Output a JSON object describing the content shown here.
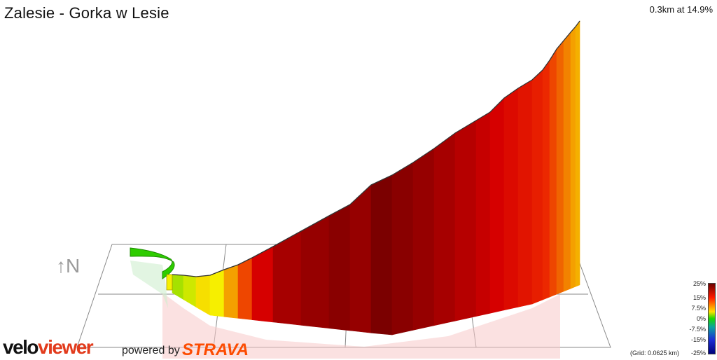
{
  "header": {
    "title": "Zalesie - Gorka w Lesie",
    "summary": "0.3km at 14.9%"
  },
  "compass": {
    "label": "↑N"
  },
  "legend": {
    "ticks": [
      "25%",
      "15%",
      "7.5%",
      "0%",
      "-7.5%",
      "-15%",
      "-25%"
    ],
    "grid_note": "(Grid: 0.0625 km)"
  },
  "branding": {
    "velo_part1": "velo",
    "velo_part2": "viewer",
    "powered_by": "powered by",
    "strava": "STRAVA"
  },
  "chart_data": {
    "type": "area",
    "title": "Zalesie - Gorka w Lesie",
    "summary": "0.3km at 14.9%",
    "distance_km": 0.3,
    "average_gradient_pct": 14.9,
    "grid_km": 0.0625,
    "gradient_scale_pct": [
      25,
      15,
      7.5,
      0,
      -7.5,
      -15,
      -25
    ],
    "segments_gradient_pct": [
      3,
      4,
      6,
      5,
      10,
      13,
      18,
      21,
      22,
      23,
      22,
      24,
      23,
      22,
      21,
      20,
      19,
      18,
      17,
      16,
      15,
      14,
      13,
      12,
      11,
      10,
      9,
      8
    ],
    "colors": {
      "steep": "#8b0000",
      "moderate": "#e60000",
      "easy": "#f4a000",
      "flat": "#2ecc00"
    }
  }
}
